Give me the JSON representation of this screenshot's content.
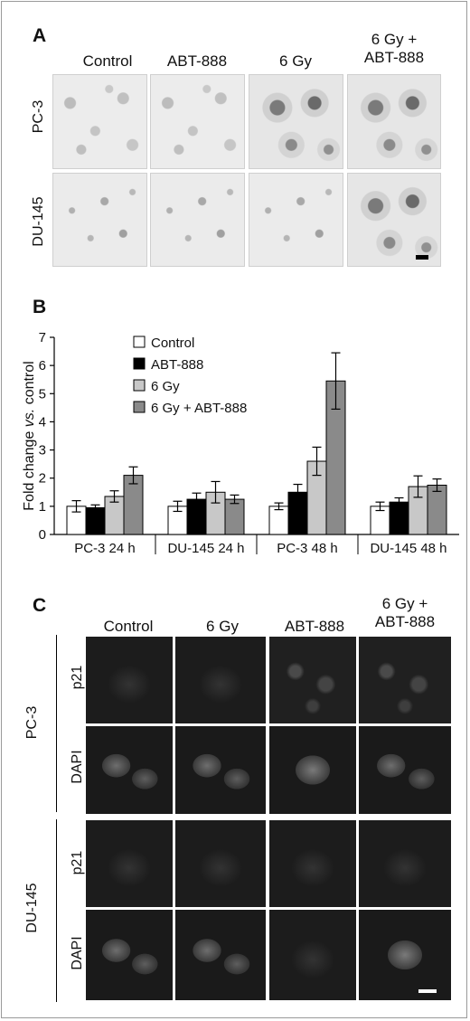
{
  "panel_a": {
    "letter": "A",
    "columns": [
      "Control",
      "ABT-888",
      "6 Gy",
      "6 Gy +\nABT-888"
    ],
    "rows": [
      "PC-3",
      "DU-145"
    ]
  },
  "panel_b": {
    "letter": "B",
    "chart_data": {
      "type": "bar",
      "categories": [
        "PC-3 24 h",
        "DU-145 24 h",
        "PC-3 48 h",
        "DU-145 48 h"
      ],
      "series": [
        {
          "name": "Control",
          "values": [
            1.0,
            1.0,
            1.0,
            1.0
          ],
          "errors": [
            0.2,
            0.18,
            0.12,
            0.15
          ],
          "color": "#ffffff"
        },
        {
          "name": "ABT-888",
          "values": [
            0.95,
            1.25,
            1.5,
            1.15
          ],
          "errors": [
            0.1,
            0.22,
            0.28,
            0.15
          ],
          "color": "#000000"
        },
        {
          "name": "6 Gy",
          "values": [
            1.35,
            1.5,
            2.6,
            1.7
          ],
          "errors": [
            0.2,
            0.38,
            0.5,
            0.38
          ],
          "color": "#c8c8c8"
        },
        {
          "name": "6 Gy + ABT-888",
          "values": [
            2.1,
            1.25,
            5.45,
            1.75
          ],
          "errors": [
            0.3,
            0.15,
            1.0,
            0.22
          ],
          "color": "#8a8a8a"
        }
      ],
      "ylabel_parts": [
        "Fold change ",
        "vs.",
        " control"
      ],
      "ylim": [
        0,
        7
      ],
      "yticks": [
        "0",
        "1",
        "2",
        "3",
        "4",
        "5",
        "6",
        "7"
      ],
      "legend_position": "top-left"
    }
  },
  "panel_c": {
    "letter": "C",
    "columns": [
      "Control",
      "6 Gy",
      "ABT-888",
      "6 Gy +\nABT-888"
    ],
    "rows": [
      "PC-3",
      "DU-145"
    ],
    "stains": [
      "p21",
      "DAPI",
      "p21",
      "DAPI"
    ]
  }
}
